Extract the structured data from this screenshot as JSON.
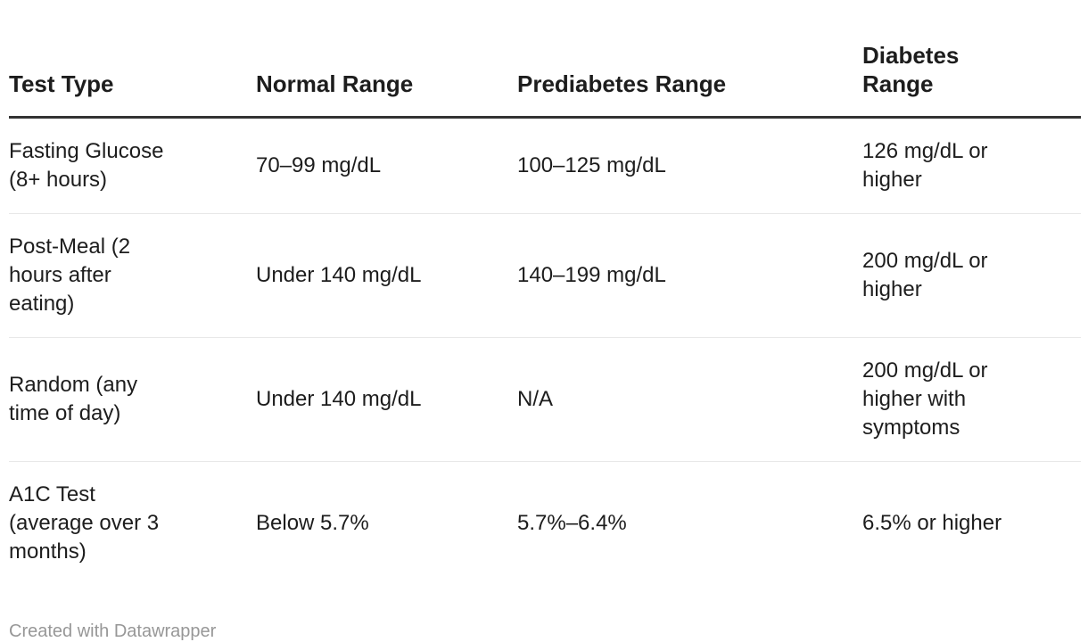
{
  "chart_data": {
    "type": "table",
    "columns": [
      "Test Type",
      "Normal Range",
      "Prediabetes Range",
      "Diabetes Range"
    ],
    "rows": [
      [
        "Fasting Glucose (8+ hours)",
        "70–99 mg/dL",
        "100–125 mg/dL",
        "126 mg/dL or higher"
      ],
      [
        "Post-Meal (2 hours after eating)",
        "Under 140 mg/dL",
        "140–199 mg/dL",
        "200 mg/dL or higher"
      ],
      [
        "Random (any time of day)",
        "Under 140 mg/dL",
        "N/A",
        "200 mg/dL or higher with symptoms"
      ],
      [
        "A1C Test (average over 3 months)",
        "Below 5.7%",
        "5.7%–6.4%",
        "6.5% or higher"
      ]
    ],
    "title": "",
    "legend_position": "none",
    "grid": "horizontal-rules-only"
  },
  "footer": {
    "credit": "Created with Datawrapper"
  },
  "colors": {
    "text": "#1d1d1d",
    "header_rule": "#333333",
    "row_rule": "#e8e8e8",
    "credit_text": "#979797",
    "background": "#ffffff"
  }
}
